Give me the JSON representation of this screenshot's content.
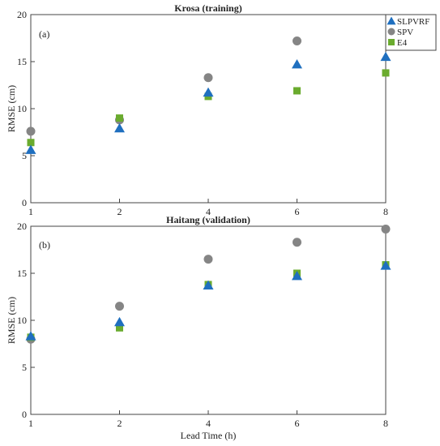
{
  "colors": {
    "SLPVRF": "#1f6fbf",
    "SPV": "#858585",
    "E4": "#6aab2e",
    "axis": "#444444"
  },
  "chart_data": [
    {
      "type": "scatter",
      "panel_label": "(a)",
      "title": "Krosa (training)",
      "xlabel": "",
      "ylabel": "RMSE (cm)",
      "categories": [
        "1",
        "2",
        "4",
        "6",
        "8"
      ],
      "ylim": [
        0,
        20
      ],
      "yticks": [
        "0",
        "5",
        "10",
        "15",
        "20"
      ],
      "grid": false,
      "legend": {
        "placement": "top-right",
        "entries": [
          {
            "name": "SLPVRF",
            "marker": "triangle"
          },
          {
            "name": "SPV",
            "marker": "circle"
          },
          {
            "name": "E4",
            "marker": "square"
          }
        ]
      },
      "series": [
        {
          "name": "SLPVRF",
          "marker": "triangle",
          "values": [
            5.6,
            7.9,
            11.7,
            14.7,
            15.5
          ]
        },
        {
          "name": "SPV",
          "marker": "circle",
          "values": [
            7.6,
            8.8,
            13.3,
            17.2,
            null
          ]
        },
        {
          "name": "E4",
          "marker": "square",
          "values": [
            6.4,
            9.0,
            11.3,
            11.9,
            13.8
          ]
        }
      ]
    },
    {
      "type": "scatter",
      "panel_label": "(b)",
      "title": "Haitang (validation)",
      "xlabel": "Lead Time (h)",
      "ylabel": "RMSE (cm)",
      "categories": [
        "1",
        "2",
        "4",
        "6",
        "8"
      ],
      "ylim": [
        0,
        20
      ],
      "yticks": [
        "0",
        "5",
        "10",
        "15",
        "20"
      ],
      "grid": false,
      "series": [
        {
          "name": "SLPVRF",
          "marker": "triangle",
          "values": [
            8.3,
            9.8,
            13.7,
            14.7,
            15.8
          ]
        },
        {
          "name": "SPV",
          "marker": "circle",
          "values": [
            8.0,
            11.5,
            16.5,
            18.3,
            19.7
          ]
        },
        {
          "name": "E4",
          "marker": "square",
          "values": [
            8.2,
            9.2,
            13.8,
            15.0,
            15.9
          ]
        }
      ]
    }
  ]
}
